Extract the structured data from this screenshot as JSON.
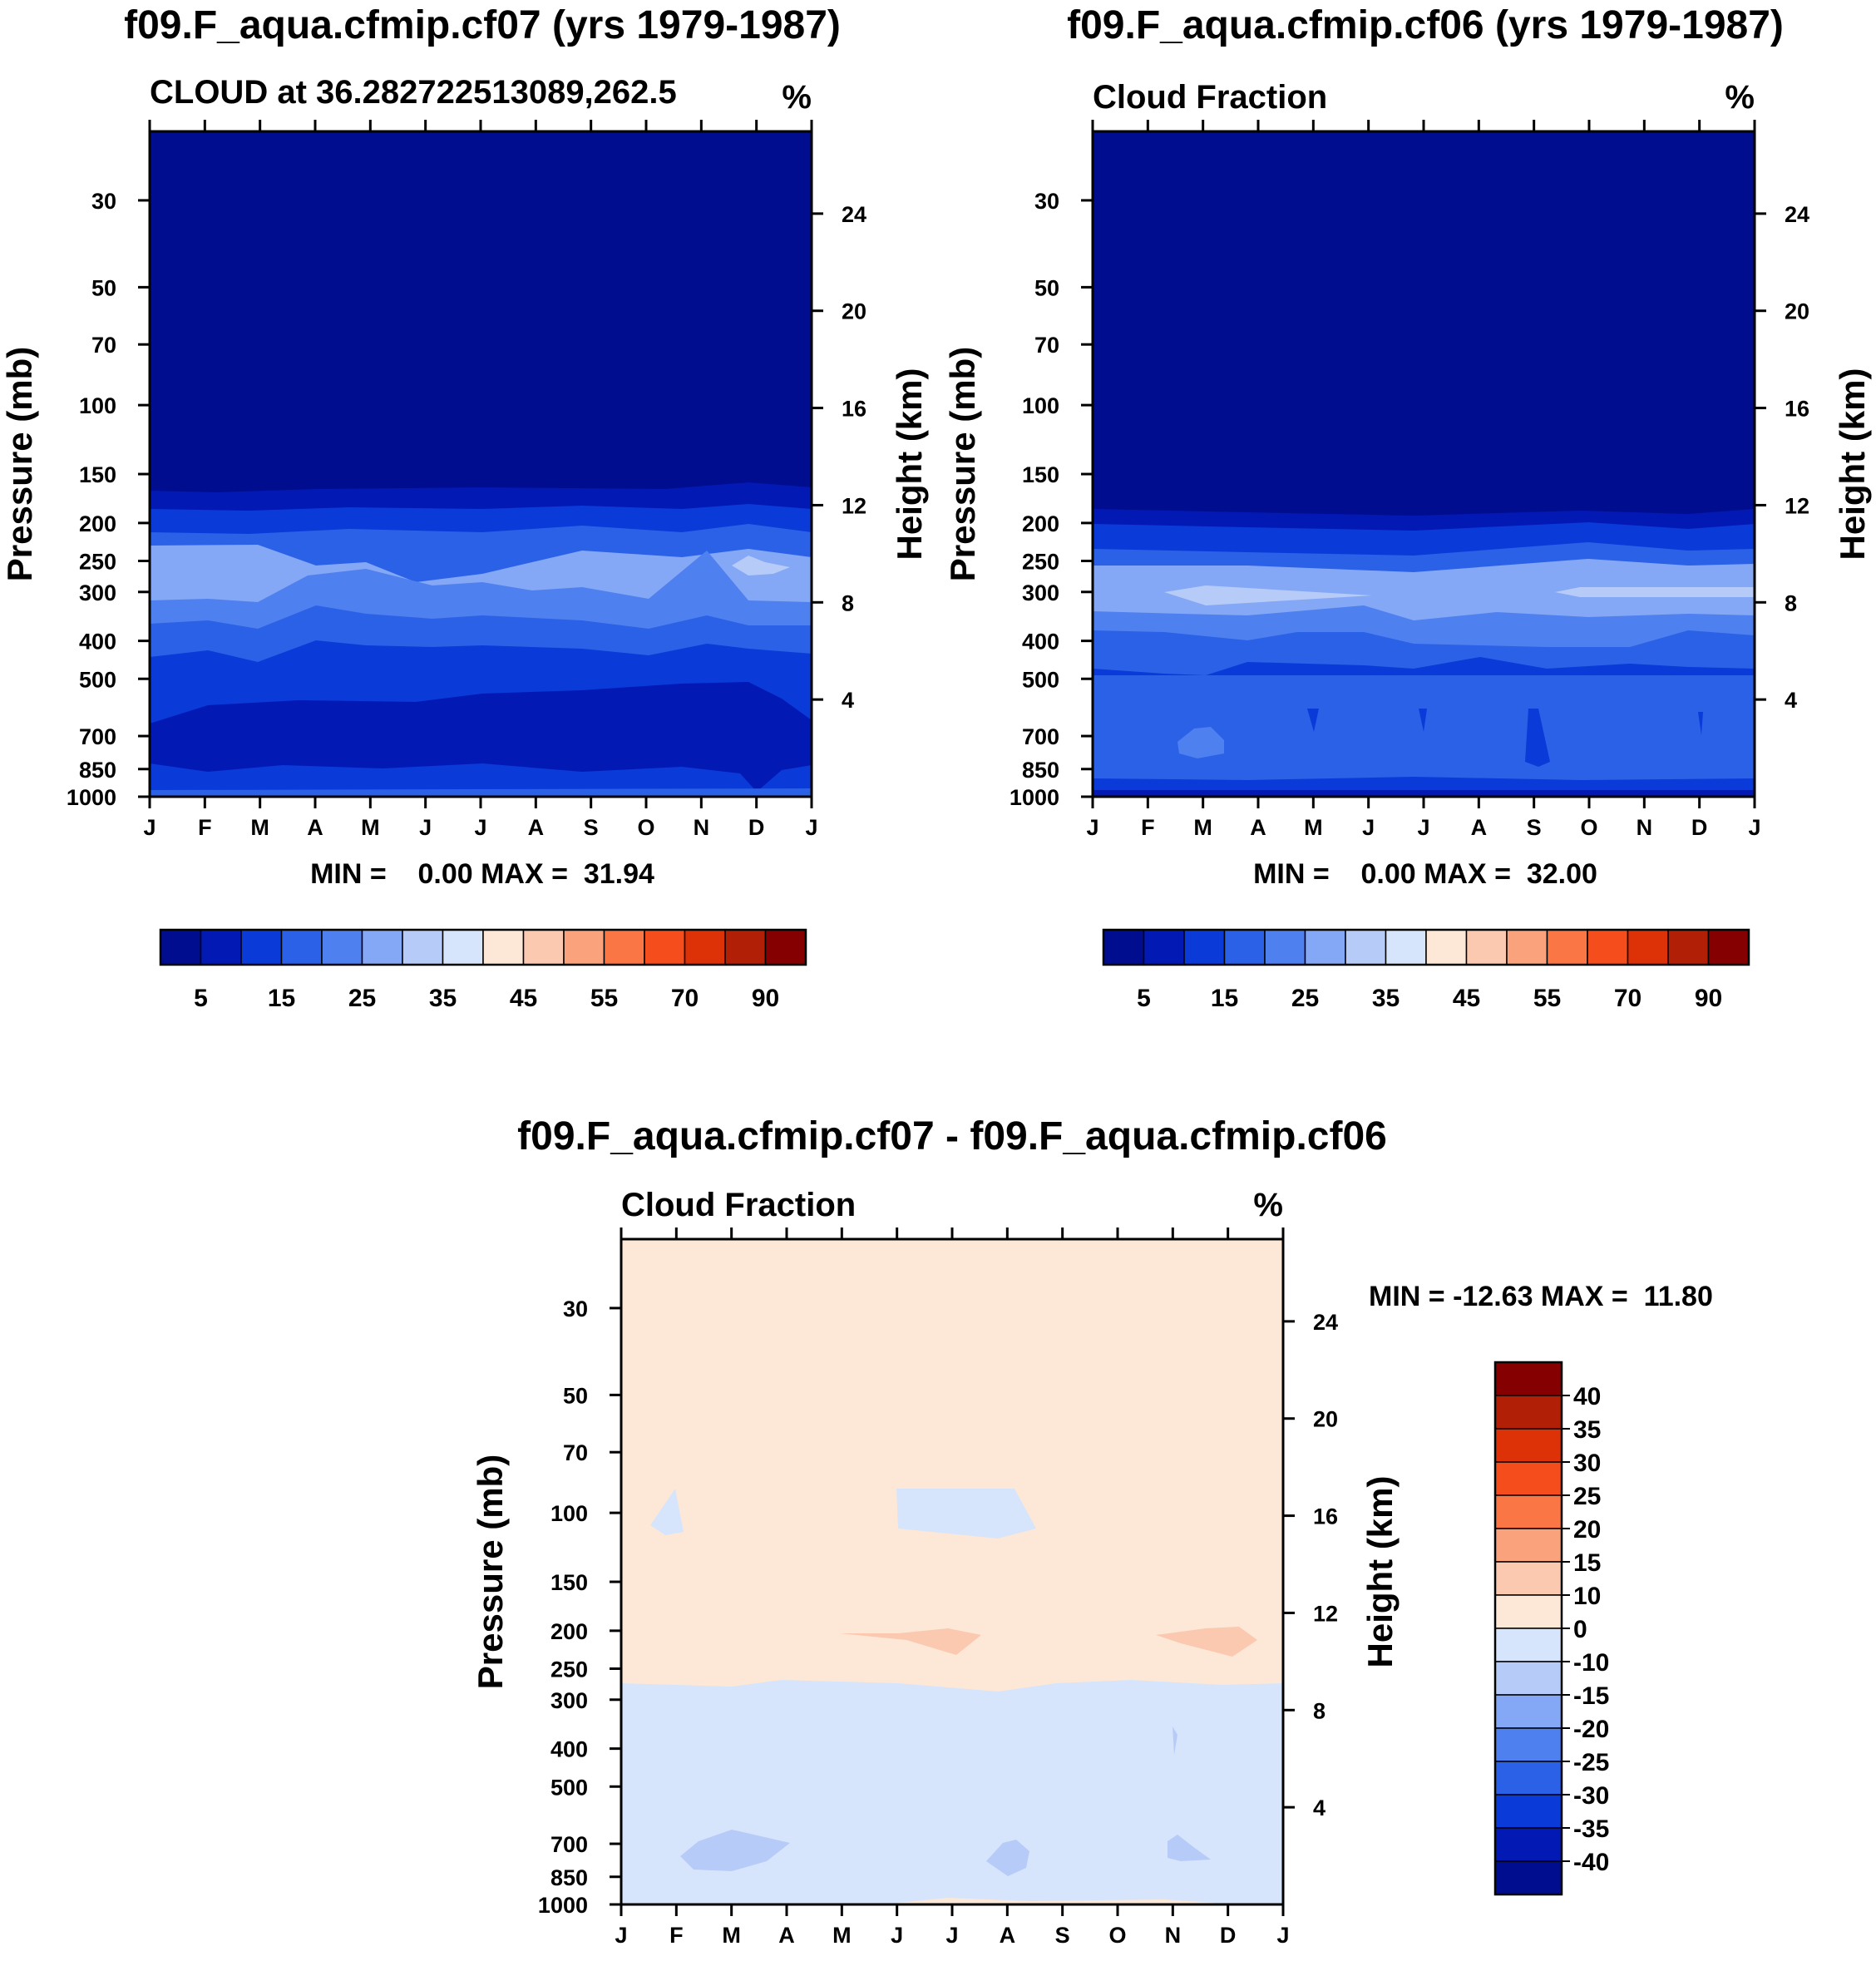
{
  "colors": {
    "dark_navy": "#000d8e",
    "royal": "#0219b4",
    "blue": "#0a3ad8",
    "mid": "#2a61e7",
    "steel": "#4f80ef",
    "sky": "#84a8f5",
    "pale": "#b7cbf8",
    "ice": "#d6e5fb",
    "cream": "#fde8d8",
    "peach": "#fbc8b0",
    "salmon": "#f9a27b",
    "coral": "#fb7645",
    "orange_red": "#f54d1b",
    "red": "#dd3108",
    "dark_red": "#b11f06",
    "maroon": "#850000"
  },
  "chart_data": [
    {
      "type": "heatmap",
      "title": "f09.F_aqua.cfmip.cf07 (yrs 1979-1987)",
      "subtitle": "CLOUD at 36.282722513089,262.5",
      "units": "%",
      "xlabel": "",
      "ylabel": "Pressure (mb)",
      "y2label": "Height (km)",
      "x_ticks": [
        "J",
        "F",
        "M",
        "A",
        "M",
        "J",
        "J",
        "A",
        "S",
        "O",
        "N",
        "D",
        "J"
      ],
      "pressure_ticks": [
        30,
        50,
        70,
        100,
        150,
        200,
        250,
        300,
        400,
        500,
        700,
        850,
        1000
      ],
      "height_ticks": [
        24,
        20,
        16,
        12,
        8,
        4
      ],
      "ylim": [
        1000,
        20
      ],
      "layers": [
        {
          "from_mb": 20,
          "to_mb": 190,
          "range": "0-5"
        },
        {
          "from_mb": 190,
          "to_mb": 215,
          "range": "5-10"
        },
        {
          "from_mb": 215,
          "to_mb": 245,
          "range": "10-15"
        },
        {
          "from_mb": 245,
          "to_mb": 260,
          "range": "15-20"
        },
        {
          "from_mb": 260,
          "to_mb": 355,
          "range": "25-30"
        },
        {
          "from_mb": 355,
          "to_mb": 410,
          "range": "20-25"
        },
        {
          "from_mb": 410,
          "to_mb": 470,
          "range": "15-20"
        },
        {
          "from_mb": 470,
          "to_mb": 680,
          "range": "10-15"
        },
        {
          "from_mb": 680,
          "to_mb": 900,
          "range": "5-10"
        },
        {
          "from_mb": 900,
          "to_mb": 1000,
          "range": "10-15"
        }
      ],
      "min": "0.00",
      "max": "31.94",
      "min_max_text": "MIN =    0.00 MAX =  31.94",
      "colorbar": {
        "orientation": "horizontal",
        "labels": [
          "5",
          "15",
          "25",
          "35",
          "45",
          "55",
          "70",
          "90"
        ]
      }
    },
    {
      "type": "heatmap",
      "title": "f09.F_aqua.cfmip.cf06 (yrs 1979-1987)",
      "subtitle": "Cloud Fraction",
      "units": "%",
      "xlabel": "",
      "ylabel": "Pressure (mb)",
      "y2label": "Height (km)",
      "x_ticks": [
        "J",
        "F",
        "M",
        "A",
        "M",
        "J",
        "J",
        "A",
        "S",
        "O",
        "N",
        "D",
        "J"
      ],
      "pressure_ticks": [
        30,
        50,
        70,
        100,
        150,
        200,
        250,
        300,
        400,
        500,
        700,
        850,
        1000
      ],
      "height_ticks": [
        24,
        20,
        16,
        12,
        8,
        4
      ],
      "ylim": [
        1000,
        20
      ],
      "layers": [
        {
          "from_mb": 20,
          "to_mb": 205,
          "range": "0-5"
        },
        {
          "from_mb": 205,
          "to_mb": 225,
          "range": "5-10"
        },
        {
          "from_mb": 225,
          "to_mb": 265,
          "range": "10-15"
        },
        {
          "from_mb": 265,
          "to_mb": 285,
          "range": "15-20"
        },
        {
          "from_mb": 285,
          "to_mb": 370,
          "range": "25-30"
        },
        {
          "from_mb": 370,
          "to_mb": 430,
          "range": "20-25"
        },
        {
          "from_mb": 430,
          "to_mb": 520,
          "range": "15-20"
        },
        {
          "from_mb": 520,
          "to_mb": 950,
          "range": "15-20"
        },
        {
          "from_mb": 950,
          "to_mb": 1000,
          "range": "10-15"
        }
      ],
      "min": "0.00",
      "max": "32.00",
      "min_max_text": "MIN =    0.00 MAX =  32.00",
      "colorbar": {
        "orientation": "horizontal",
        "labels": [
          "5",
          "15",
          "25",
          "35",
          "45",
          "55",
          "70",
          "90"
        ]
      }
    },
    {
      "type": "heatmap",
      "title": "f09.F_aqua.cfmip.cf07 - f09.F_aqua.cfmip.cf06",
      "subtitle": "Cloud Fraction",
      "units": "%",
      "xlabel": "",
      "ylabel": "Pressure (mb)",
      "y2label": "Height (km)",
      "x_ticks": [
        "J",
        "F",
        "M",
        "A",
        "M",
        "J",
        "J",
        "A",
        "S",
        "O",
        "N",
        "D",
        "J"
      ],
      "pressure_ticks": [
        30,
        50,
        70,
        100,
        150,
        200,
        250,
        300,
        400,
        500,
        700,
        850,
        1000
      ],
      "height_ticks": [
        24,
        20,
        16,
        12,
        8,
        4
      ],
      "ylim": [
        1000,
        20
      ],
      "layers": [
        {
          "from_mb": 20,
          "to_mb": 300,
          "range": "0 to 10"
        },
        {
          "from_mb": 300,
          "to_mb": 1000,
          "range": "-10 to 0"
        }
      ],
      "min": "-12.63",
      "max": "11.80",
      "min_max_text": "MIN = -12.63 MAX =  11.80",
      "colorbar": {
        "orientation": "vertical",
        "labels": [
          "40",
          "35",
          "30",
          "25",
          "20",
          "15",
          "10",
          "0",
          "-10",
          "-15",
          "-20",
          "-25",
          "-30",
          "-35",
          "-40"
        ]
      }
    }
  ]
}
